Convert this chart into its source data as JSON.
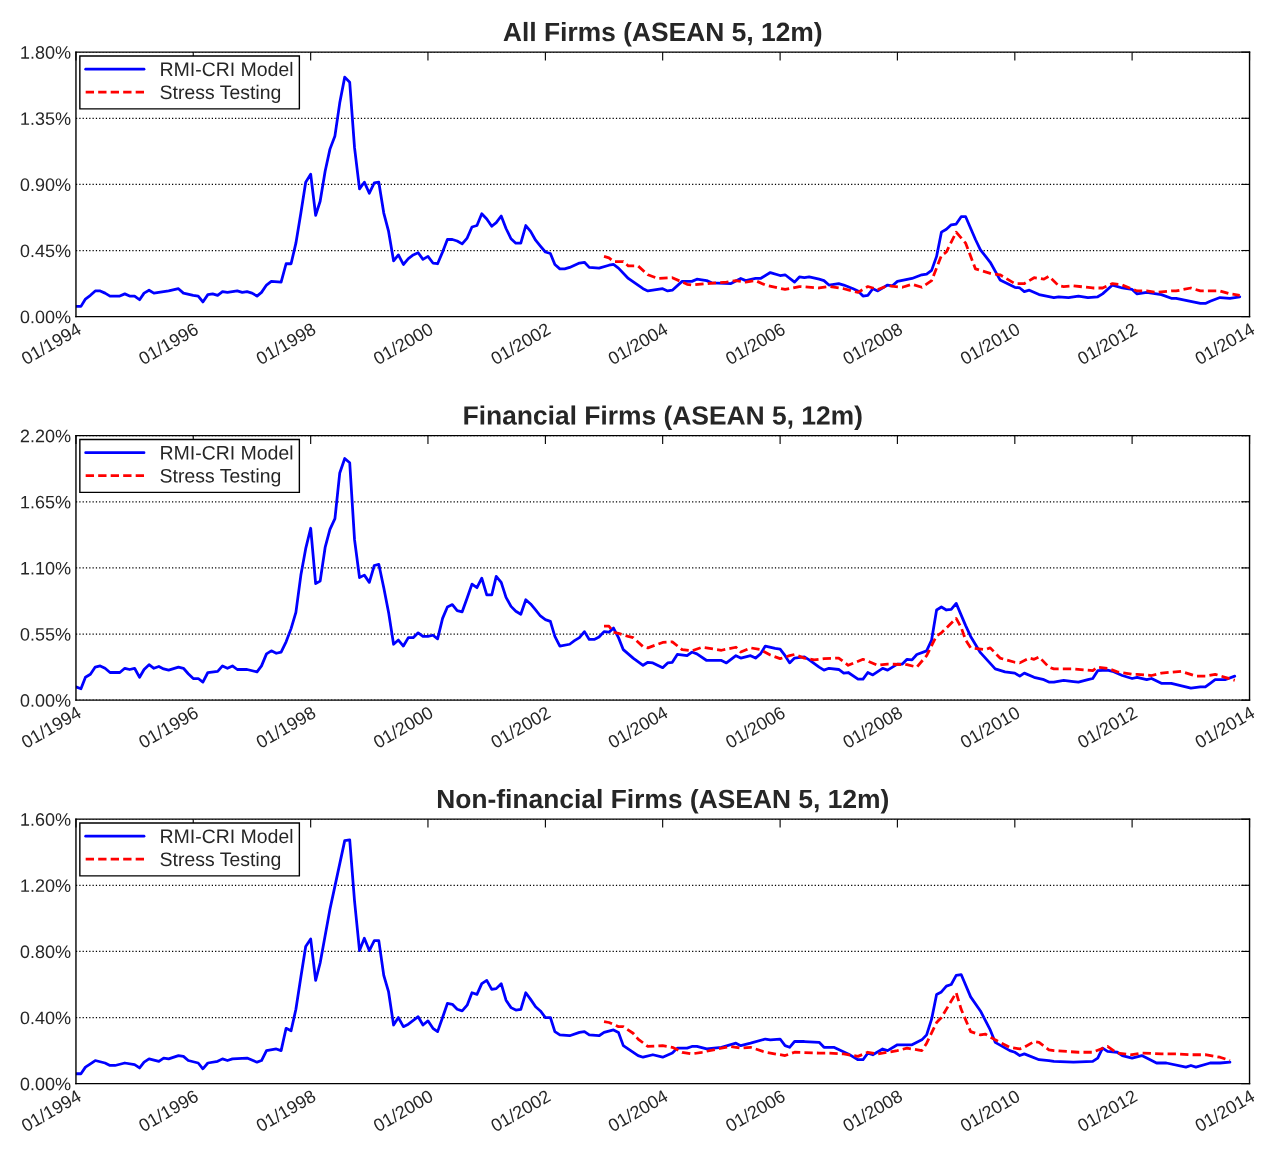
{
  "chart_data": [
    {
      "type": "line",
      "title": "All Firms (ASEAN 5, 12m)",
      "xlim": [
        "1994-01",
        "2014-01"
      ],
      "xticks": [
        {
          "value": "1994-01",
          "label": "01/1994"
        },
        {
          "value": "1996-01",
          "label": "01/1996"
        },
        {
          "value": "1998-01",
          "label": "01/1998"
        },
        {
          "value": "2000-01",
          "label": "01/2000"
        },
        {
          "value": "2002-01",
          "label": "01/2002"
        },
        {
          "value": "2004-01",
          "label": "01/2004"
        },
        {
          "value": "2006-01",
          "label": "01/2006"
        },
        {
          "value": "2008-01",
          "label": "01/2008"
        },
        {
          "value": "2010-01",
          "label": "01/2010"
        },
        {
          "value": "2012-01",
          "label": "01/2012"
        },
        {
          "value": "2014-01",
          "label": "01/2014"
        }
      ],
      "ylim": [
        0,
        1.8
      ],
      "yticks": [
        {
          "value": 0,
          "label": "0.00%"
        },
        {
          "value": 0.45,
          "label": "0.45%"
        },
        {
          "value": 0.9,
          "label": "0.90%"
        },
        {
          "value": 1.35,
          "label": "1.35%"
        },
        {
          "value": 1.8,
          "label": "1.80%"
        }
      ],
      "grid": "y",
      "legend": "top left",
      "series": [
        {
          "name": "RMI-CRI Model",
          "color": "#0000ff",
          "line_style": "solid",
          "x": [
            "1994-01",
            "1994-02",
            "1994-03",
            "1994-04",
            "1994-05",
            "1994-06",
            "1994-07",
            "1994-08",
            "1994-10",
            "1994-11",
            "1994-12",
            "1995-01",
            "1995-02",
            "1995-03",
            "1995-04",
            "1995-05",
            "1995-07",
            "1995-08",
            "1995-10",
            "1995-11",
            "1996-01",
            "1996-02",
            "1996-03",
            "1996-04",
            "1996-05",
            "1996-06",
            "1996-07",
            "1996-08",
            "1996-10",
            "1996-11",
            "1996-12",
            "1997-01",
            "1997-02",
            "1997-03",
            "1997-04",
            "1997-05",
            "1997-07",
            "1997-08",
            "1997-09",
            "1997-10",
            "1997-11",
            "1997-12",
            "1998-01",
            "1998-02",
            "1998-03",
            "1998-04",
            "1998-05",
            "1998-06",
            "1998-07",
            "1998-08",
            "1998-09",
            "1998-10",
            "1998-11",
            "1998-12",
            "1999-01",
            "1999-02",
            "1999-03",
            "1999-04",
            "1999-05",
            "1999-06",
            "1999-07",
            "1999-08",
            "1999-09",
            "1999-10",
            "1999-11",
            "1999-12",
            "2000-01",
            "2000-02",
            "2000-03",
            "2000-04",
            "2000-05",
            "2000-06",
            "2000-07",
            "2000-08",
            "2000-09",
            "2000-10",
            "2000-11",
            "2000-12",
            "2001-01",
            "2001-02",
            "2001-03",
            "2001-04",
            "2001-05",
            "2001-06",
            "2001-07",
            "2001-08",
            "2001-09",
            "2001-10",
            "2001-11",
            "2001-12",
            "2002-01",
            "2002-02",
            "2002-03",
            "2002-04",
            "2002-05",
            "2002-06",
            "2002-08",
            "2002-09",
            "2002-10",
            "2002-12",
            "2003-02",
            "2003-03",
            "2003-04",
            "2003-06",
            "2003-09",
            "2003-10",
            "2004-01",
            "2004-02",
            "2004-03",
            "2004-05",
            "2004-07",
            "2004-08",
            "2004-10",
            "2004-11",
            "2005-03",
            "2005-05",
            "2005-06",
            "2005-08",
            "2005-09",
            "2005-11",
            "2006-01",
            "2006-02",
            "2006-04",
            "2006-05",
            "2006-06",
            "2006-07",
            "2006-09",
            "2006-10",
            "2006-11",
            "2007-01",
            "2007-02",
            "2007-04",
            "2007-05",
            "2007-06",
            "2007-07",
            "2007-08",
            "2007-09",
            "2007-11",
            "2007-12",
            "2008-01",
            "2008-04",
            "2008-06",
            "2008-07",
            "2008-08",
            "2008-09",
            "2008-10",
            "2008-11",
            "2008-12",
            "2009-01",
            "2009-02",
            "2009-03",
            "2009-05",
            "2009-06",
            "2009-08",
            "2009-10",
            "2010-01",
            "2010-02",
            "2010-03",
            "2010-04",
            "2010-06",
            "2010-09",
            "2010-10",
            "2010-12",
            "2011-02",
            "2011-04",
            "2011-06",
            "2011-07",
            "2011-09",
            "2011-11",
            "2012-01",
            "2012-02",
            "2012-04",
            "2012-07",
            "2012-09",
            "2012-10",
            "2013-03",
            "2013-04",
            "2013-05",
            "2013-07",
            "2013-09",
            "2013-11"
          ],
          "values": [
            0.07,
            0.07,
            0.12,
            0.145,
            0.175,
            0.175,
            0.16,
            0.14,
            0.14,
            0.155,
            0.14,
            0.14,
            0.115,
            0.16,
            0.18,
            0.16,
            0.17,
            0.175,
            0.19,
            0.16,
            0.145,
            0.14,
            0.1,
            0.15,
            0.155,
            0.145,
            0.17,
            0.165,
            0.175,
            0.165,
            0.17,
            0.16,
            0.14,
            0.165,
            0.215,
            0.24,
            0.235,
            0.36,
            0.36,
            0.5,
            0.705,
            0.915,
            0.97,
            0.69,
            0.785,
            0.99,
            1.14,
            1.23,
            1.455,
            1.63,
            1.595,
            1.15,
            0.87,
            0.915,
            0.84,
            0.91,
            0.915,
            0.705,
            0.58,
            0.38,
            0.42,
            0.355,
            0.395,
            0.42,
            0.435,
            0.39,
            0.41,
            0.365,
            0.36,
            0.44,
            0.525,
            0.525,
            0.515,
            0.495,
            0.535,
            0.61,
            0.62,
            0.7,
            0.665,
            0.615,
            0.64,
            0.685,
            0.6,
            0.53,
            0.5,
            0.5,
            0.62,
            0.58,
            0.52,
            0.48,
            0.44,
            0.43,
            0.355,
            0.325,
            0.325,
            0.335,
            0.365,
            0.37,
            0.335,
            0.33,
            0.35,
            0.355,
            0.33,
            0.26,
            0.19,
            0.175,
            0.19,
            0.175,
            0.18,
            0.24,
            0.24,
            0.255,
            0.245,
            0.23,
            0.225,
            0.26,
            0.245,
            0.26,
            0.26,
            0.3,
            0.28,
            0.285,
            0.235,
            0.27,
            0.265,
            0.27,
            0.255,
            0.245,
            0.215,
            0.225,
            0.215,
            0.19,
            0.175,
            0.14,
            0.145,
            0.19,
            0.175,
            0.215,
            0.21,
            0.24,
            0.26,
            0.285,
            0.29,
            0.315,
            0.41,
            0.575,
            0.595,
            0.625,
            0.63,
            0.68,
            0.68,
            0.525,
            0.455,
            0.37,
            0.25,
            0.2,
            0.195,
            0.17,
            0.18,
            0.15,
            0.13,
            0.135,
            0.13,
            0.14,
            0.13,
            0.135,
            0.155,
            0.215,
            0.195,
            0.185,
            0.155,
            0.165,
            0.15,
            0.125,
            0.125,
            0.09,
            0.09,
            0.105,
            0.13,
            0.125,
            0.135
          ]
        },
        {
          "name": "Stress Testing",
          "color": "#ff0000",
          "line_style": "dashed",
          "x": [
            "2003-01",
            "2003-02",
            "2003-03",
            "2003-05",
            "2003-06",
            "2003-08",
            "2003-10",
            "2003-12",
            "2004-03",
            "2004-06",
            "2004-07",
            "2004-10",
            "2005-02",
            "2005-04",
            "2005-06",
            "2005-08",
            "2005-10",
            "2006-02",
            "2006-05",
            "2006-09",
            "2006-11",
            "2007-02",
            "2007-05",
            "2007-07",
            "2007-09",
            "2007-11",
            "2008-02",
            "2008-04",
            "2008-06",
            "2008-08",
            "2008-10",
            "2008-11",
            "2009-01",
            "2009-03",
            "2009-05",
            "2009-08",
            "2009-10",
            "2010-01",
            "2010-03",
            "2010-05",
            "2010-07",
            "2010-08",
            "2010-10",
            "2010-11",
            "2011-01",
            "2011-05",
            "2011-07",
            "2011-09",
            "2011-11",
            "2012-02",
            "2012-04",
            "2012-06",
            "2012-09",
            "2012-10",
            "2013-01",
            "2013-03",
            "2013-07",
            "2013-09",
            "2013-11"
          ],
          "values": [
            0.41,
            0.4,
            0.375,
            0.375,
            0.345,
            0.345,
            0.285,
            0.26,
            0.265,
            0.22,
            0.215,
            0.225,
            0.235,
            0.245,
            0.235,
            0.245,
            0.215,
            0.185,
            0.205,
            0.195,
            0.205,
            0.19,
            0.165,
            0.205,
            0.185,
            0.21,
            0.2,
            0.22,
            0.2,
            0.245,
            0.415,
            0.44,
            0.575,
            0.5,
            0.325,
            0.295,
            0.285,
            0.225,
            0.225,
            0.265,
            0.255,
            0.275,
            0.21,
            0.205,
            0.21,
            0.195,
            0.195,
            0.225,
            0.215,
            0.175,
            0.175,
            0.165,
            0.175,
            0.175,
            0.195,
            0.175,
            0.175,
            0.155,
            0.145
          ]
        }
      ]
    },
    {
      "type": "line",
      "title": "Financial Firms (ASEAN 5, 12m)",
      "xlim": [
        "1994-01",
        "2014-01"
      ],
      "xticks": [
        {
          "value": "1994-01",
          "label": "01/1994"
        },
        {
          "value": "1996-01",
          "label": "01/1996"
        },
        {
          "value": "1998-01",
          "label": "01/1998"
        },
        {
          "value": "2000-01",
          "label": "01/2000"
        },
        {
          "value": "2002-01",
          "label": "01/2002"
        },
        {
          "value": "2004-01",
          "label": "01/2004"
        },
        {
          "value": "2006-01",
          "label": "01/2006"
        },
        {
          "value": "2008-01",
          "label": "01/2008"
        },
        {
          "value": "2010-01",
          "label": "01/2010"
        },
        {
          "value": "2012-01",
          "label": "01/2012"
        },
        {
          "value": "2014-01",
          "label": "01/2014"
        }
      ],
      "ylim": [
        0,
        2.2
      ],
      "yticks": [
        {
          "value": 0,
          "label": "0.00%"
        },
        {
          "value": 0.55,
          "label": "0.55%"
        },
        {
          "value": 1.1,
          "label": "1.10%"
        },
        {
          "value": 1.65,
          "label": "1.65%"
        },
        {
          "value": 2.2,
          "label": "2.20%"
        }
      ],
      "grid": "y",
      "legend": "top left",
      "series": [
        {
          "name": "RMI-CRI Model",
          "color": "#0000ff",
          "line_style": "solid",
          "x": [
            "1994-01",
            "1994-02",
            "1994-03",
            "1994-04",
            "1994-05",
            "1994-06",
            "1994-07",
            "1994-08",
            "1994-10",
            "1994-11",
            "1994-12",
            "1995-01",
            "1995-02",
            "1995-03",
            "1995-04",
            "1995-05",
            "1995-06",
            "1995-07",
            "1995-08",
            "1995-10",
            "1995-11",
            "1995-12",
            "1996-01",
            "1996-02",
            "1996-03",
            "1996-04",
            "1996-06",
            "1996-07",
            "1996-08",
            "1996-09",
            "1996-10",
            "1996-12",
            "1997-02",
            "1997-03",
            "1997-04",
            "1997-05",
            "1997-06",
            "1997-07",
            "1997-08",
            "1997-09",
            "1997-10",
            "1997-11",
            "1997-12",
            "1998-01",
            "1998-02",
            "1998-03",
            "1998-04",
            "1998-05",
            "1998-06",
            "1998-07",
            "1998-08",
            "1998-09",
            "1998-10",
            "1998-11",
            "1998-12",
            "1999-01",
            "1999-02",
            "1999-03",
            "1999-04",
            "1999-05",
            "1999-06",
            "1999-07",
            "1999-08",
            "1999-09",
            "1999-10",
            "1999-11",
            "1999-12",
            "2000-01",
            "2000-02",
            "2000-03",
            "2000-04",
            "2000-05",
            "2000-06",
            "2000-07",
            "2000-08",
            "2000-09",
            "2000-10",
            "2000-11",
            "2000-12",
            "2001-01",
            "2001-02",
            "2001-03",
            "2001-04",
            "2001-05",
            "2001-06",
            "2001-07",
            "2001-08",
            "2001-09",
            "2001-10",
            "2001-11",
            "2001-12",
            "2002-01",
            "2002-02",
            "2002-03",
            "2002-04",
            "2002-06",
            "2002-07",
            "2002-08",
            "2002-09",
            "2002-10",
            "2002-11",
            "2002-12",
            "2003-01",
            "2003-02",
            "2003-03",
            "2003-04",
            "2003-05",
            "2003-07",
            "2003-09",
            "2003-10",
            "2003-11",
            "2004-01",
            "2004-02",
            "2004-03",
            "2004-04",
            "2004-06",
            "2004-07",
            "2004-08",
            "2004-10",
            "2005-01",
            "2005-02",
            "2005-04",
            "2005-05",
            "2005-06",
            "2005-07",
            "2005-08",
            "2005-09",
            "2005-10",
            "2005-12",
            "2006-01",
            "2006-02",
            "2006-03",
            "2006-04",
            "2006-06",
            "2006-07",
            "2006-09",
            "2006-10",
            "2006-11",
            "2007-01",
            "2007-02",
            "2007-03",
            "2007-05",
            "2007-06",
            "2007-07",
            "2007-08",
            "2007-10",
            "2007-11",
            "2008-01",
            "2008-02",
            "2008-03",
            "2008-04",
            "2008-05",
            "2008-07",
            "2008-08",
            "2008-09",
            "2008-10",
            "2008-11",
            "2008-12",
            "2009-01",
            "2009-03",
            "2009-04",
            "2009-06",
            "2009-09",
            "2009-11",
            "2010-01",
            "2010-02",
            "2010-03",
            "2010-05",
            "2010-07",
            "2010-08",
            "2010-09",
            "2010-11",
            "2011-01",
            "2011-02",
            "2011-04",
            "2011-05",
            "2011-06",
            "2011-08",
            "2011-09",
            "2011-11",
            "2012-01",
            "2012-02",
            "2012-04",
            "2012-05",
            "2012-07",
            "2012-09",
            "2013-01",
            "2013-03",
            "2013-04",
            "2013-05",
            "2013-06",
            "2013-08",
            "2013-10"
          ],
          "values": [
            0.11,
            0.095,
            0.19,
            0.215,
            0.275,
            0.285,
            0.265,
            0.23,
            0.23,
            0.265,
            0.255,
            0.265,
            0.19,
            0.255,
            0.295,
            0.265,
            0.28,
            0.26,
            0.25,
            0.275,
            0.265,
            0.22,
            0.18,
            0.18,
            0.15,
            0.23,
            0.24,
            0.285,
            0.265,
            0.285,
            0.255,
            0.255,
            0.235,
            0.285,
            0.385,
            0.41,
            0.39,
            0.4,
            0.485,
            0.595,
            0.73,
            1.04,
            1.26,
            1.43,
            0.97,
            0.99,
            1.27,
            1.42,
            1.51,
            1.89,
            2.01,
            1.975,
            1.335,
            1.02,
            1.04,
            0.98,
            1.12,
            1.13,
            0.935,
            0.73,
            0.465,
            0.5,
            0.45,
            0.52,
            0.52,
            0.56,
            0.53,
            0.53,
            0.54,
            0.51,
            0.68,
            0.775,
            0.795,
            0.745,
            0.735,
            0.85,
            0.965,
            0.935,
            1.015,
            0.875,
            0.875,
            1.03,
            0.98,
            0.855,
            0.78,
            0.74,
            0.715,
            0.835,
            0.8,
            0.75,
            0.7,
            0.67,
            0.655,
            0.53,
            0.45,
            0.465,
            0.495,
            0.52,
            0.57,
            0.505,
            0.505,
            0.525,
            0.57,
            0.565,
            0.6,
            0.52,
            0.42,
            0.35,
            0.29,
            0.315,
            0.31,
            0.27,
            0.31,
            0.315,
            0.38,
            0.37,
            0.4,
            0.385,
            0.33,
            0.33,
            0.31,
            0.37,
            0.35,
            0.36,
            0.37,
            0.35,
            0.385,
            0.45,
            0.43,
            0.425,
            0.37,
            0.31,
            0.35,
            0.36,
            0.335,
            0.275,
            0.25,
            0.265,
            0.255,
            0.225,
            0.23,
            0.175,
            0.175,
            0.23,
            0.21,
            0.265,
            0.25,
            0.3,
            0.3,
            0.34,
            0.335,
            0.38,
            0.41,
            0.5,
            0.75,
            0.775,
            0.75,
            0.755,
            0.805,
            0.62,
            0.53,
            0.395,
            0.26,
            0.235,
            0.225,
            0.2,
            0.225,
            0.19,
            0.17,
            0.15,
            0.15,
            0.165,
            0.155,
            0.15,
            0.17,
            0.18,
            0.245,
            0.25,
            0.24,
            0.205,
            0.18,
            0.19,
            0.17,
            0.18,
            0.14,
            0.14,
            0.1,
            0.11,
            0.11,
            0.14,
            0.17,
            0.17,
            0.2
          ]
        },
        {
          "name": "Stress Testing",
          "color": "#ff0000",
          "line_style": "dashed",
          "x": [
            "2003-01",
            "2003-02",
            "2003-03",
            "2003-04",
            "2003-06",
            "2003-07",
            "2003-09",
            "2003-10",
            "2004-01",
            "2004-03",
            "2004-05",
            "2004-07",
            "2004-09",
            "2005-01",
            "2005-04",
            "2005-05",
            "2005-07",
            "2005-09",
            "2005-11",
            "2006-01",
            "2006-03",
            "2006-04",
            "2006-06",
            "2006-08",
            "2006-10",
            "2007-01",
            "2007-03",
            "2007-06",
            "2007-07",
            "2007-09",
            "2007-11",
            "2008-03",
            "2008-05",
            "2008-07",
            "2008-09",
            "2008-10",
            "2009-01",
            "2009-02",
            "2009-03",
            "2009-04",
            "2009-07",
            "2009-08",
            "2009-10",
            "2010-01",
            "2010-02",
            "2010-04",
            "2010-05",
            "2010-06",
            "2010-08",
            "2010-09",
            "2011-01",
            "2011-05",
            "2011-06",
            "2011-08",
            "2011-10",
            "2012-01",
            "2012-02",
            "2012-05",
            "2012-07",
            "2012-11",
            "2013-02",
            "2013-04",
            "2013-06",
            "2013-08",
            "2013-10"
          ],
          "values": [
            0.615,
            0.615,
            0.565,
            0.555,
            0.53,
            0.52,
            0.445,
            0.435,
            0.48,
            0.485,
            0.42,
            0.41,
            0.44,
            0.415,
            0.44,
            0.4,
            0.435,
            0.42,
            0.375,
            0.345,
            0.37,
            0.38,
            0.35,
            0.335,
            0.345,
            0.35,
            0.29,
            0.34,
            0.325,
            0.29,
            0.3,
            0.295,
            0.275,
            0.37,
            0.535,
            0.56,
            0.68,
            0.605,
            0.5,
            0.435,
            0.42,
            0.435,
            0.35,
            0.315,
            0.31,
            0.35,
            0.34,
            0.36,
            0.275,
            0.26,
            0.26,
            0.245,
            0.275,
            0.265,
            0.235,
            0.215,
            0.215,
            0.205,
            0.225,
            0.24,
            0.2,
            0.2,
            0.215,
            0.19,
            0.165
          ]
        }
      ]
    },
    {
      "type": "line",
      "title": "Non-financial Firms (ASEAN 5, 12m)",
      "xlim": [
        "1994-01",
        "2014-01"
      ],
      "xticks": [
        {
          "value": "1994-01",
          "label": "01/1994"
        },
        {
          "value": "1996-01",
          "label": "01/1996"
        },
        {
          "value": "1998-01",
          "label": "01/1998"
        },
        {
          "value": "2000-01",
          "label": "01/2000"
        },
        {
          "value": "2002-01",
          "label": "01/2002"
        },
        {
          "value": "2004-01",
          "label": "01/2004"
        },
        {
          "value": "2006-01",
          "label": "01/2006"
        },
        {
          "value": "2008-01",
          "label": "01/2008"
        },
        {
          "value": "2010-01",
          "label": "01/2010"
        },
        {
          "value": "2012-01",
          "label": "01/2012"
        },
        {
          "value": "2014-01",
          "label": "01/2014"
        }
      ],
      "ylim": [
        0,
        1.6
      ],
      "yticks": [
        {
          "value": 0,
          "label": "0.00%"
        },
        {
          "value": 0.4,
          "label": "0.40%"
        },
        {
          "value": 0.8,
          "label": "0.80%"
        },
        {
          "value": 1.2,
          "label": "1.20%"
        },
        {
          "value": 1.6,
          "label": "1.60%"
        }
      ],
      "grid": "y",
      "legend": "top left",
      "series": [
        {
          "name": "RMI-CRI Model",
          "color": "#0000ff",
          "line_style": "solid",
          "x": [
            "1994-01",
            "1994-02",
            "1994-03",
            "1994-04",
            "1994-05",
            "1994-07",
            "1994-08",
            "1994-09",
            "1994-11",
            "1995-01",
            "1995-02",
            "1995-03",
            "1995-04",
            "1995-06",
            "1995-07",
            "1995-08",
            "1995-10",
            "1995-11",
            "1995-12",
            "1996-02",
            "1996-03",
            "1996-04",
            "1996-06",
            "1996-07",
            "1996-08",
            "1996-09",
            "1996-12",
            "1997-02",
            "1997-03",
            "1997-04",
            "1997-06",
            "1997-07",
            "1997-08",
            "1997-09",
            "1997-10",
            "1997-11",
            "1997-12",
            "1998-01",
            "1998-02",
            "1998-03",
            "1998-05",
            "1998-06",
            "1998-08",
            "1998-09",
            "1998-10",
            "1998-11",
            "1998-12",
            "1999-01",
            "1999-02",
            "1999-03",
            "1999-04",
            "1999-05",
            "1999-06",
            "1999-07",
            "1999-08",
            "1999-09",
            "1999-11",
            "1999-12",
            "2000-01",
            "2000-02",
            "2000-03",
            "2000-04",
            "2000-05",
            "2000-06",
            "2000-07",
            "2000-08",
            "2000-09",
            "2000-10",
            "2000-11",
            "2000-12",
            "2001-01",
            "2001-02",
            "2001-03",
            "2001-04",
            "2001-05",
            "2001-06",
            "2001-07",
            "2001-08",
            "2001-09",
            "2001-10",
            "2001-11",
            "2001-12",
            "2002-01",
            "2002-02",
            "2002-03",
            "2002-04",
            "2002-06",
            "2002-08",
            "2002-09",
            "2002-10",
            "2002-12",
            "2003-01",
            "2003-03",
            "2003-04",
            "2003-05",
            "2003-08",
            "2003-09",
            "2003-11",
            "2004-01",
            "2004-03",
            "2004-04",
            "2004-06",
            "2004-07",
            "2004-08",
            "2004-10",
            "2005-01",
            "2005-04",
            "2005-05",
            "2005-07",
            "2005-10",
            "2005-11",
            "2006-01",
            "2006-02",
            "2006-03",
            "2006-04",
            "2006-06",
            "2006-09",
            "2006-10",
            "2006-12",
            "2007-03",
            "2007-05",
            "2007-06",
            "2007-07",
            "2007-08",
            "2007-10",
            "2007-11",
            "2008-01",
            "2008-04",
            "2008-06",
            "2008-07",
            "2008-08",
            "2008-09",
            "2008-10",
            "2008-11",
            "2008-12",
            "2009-01",
            "2009-02",
            "2009-04",
            "2009-06",
            "2009-08",
            "2009-09",
            "2009-12",
            "2010-01",
            "2010-02",
            "2010-03",
            "2010-06",
            "2010-08",
            "2010-09",
            "2011-01",
            "2011-05",
            "2011-06",
            "2011-07",
            "2011-08",
            "2011-10",
            "2011-11",
            "2012-01",
            "2012-03",
            "2012-04",
            "2012-06",
            "2012-08",
            "2012-12",
            "2013-01",
            "2013-02",
            "2013-05",
            "2013-07",
            "2013-09"
          ],
          "values": [
            0.06,
            0.06,
            0.1,
            0.12,
            0.14,
            0.125,
            0.11,
            0.11,
            0.125,
            0.115,
            0.095,
            0.13,
            0.15,
            0.135,
            0.155,
            0.15,
            0.17,
            0.165,
            0.14,
            0.125,
            0.09,
            0.125,
            0.135,
            0.15,
            0.14,
            0.15,
            0.155,
            0.13,
            0.14,
            0.2,
            0.21,
            0.2,
            0.335,
            0.32,
            0.45,
            0.645,
            0.83,
            0.875,
            0.625,
            0.73,
            1.055,
            1.195,
            1.47,
            1.475,
            1.105,
            0.805,
            0.88,
            0.805,
            0.865,
            0.865,
            0.655,
            0.555,
            0.355,
            0.4,
            0.345,
            0.36,
            0.405,
            0.355,
            0.38,
            0.335,
            0.315,
            0.4,
            0.485,
            0.48,
            0.45,
            0.44,
            0.475,
            0.55,
            0.54,
            0.605,
            0.625,
            0.57,
            0.575,
            0.605,
            0.505,
            0.46,
            0.445,
            0.45,
            0.55,
            0.51,
            0.465,
            0.44,
            0.4,
            0.4,
            0.315,
            0.295,
            0.29,
            0.31,
            0.315,
            0.295,
            0.29,
            0.31,
            0.325,
            0.31,
            0.23,
            0.17,
            0.16,
            0.175,
            0.16,
            0.185,
            0.215,
            0.215,
            0.225,
            0.225,
            0.21,
            0.22,
            0.245,
            0.23,
            0.245,
            0.27,
            0.265,
            0.27,
            0.23,
            0.22,
            0.255,
            0.255,
            0.25,
            0.22,
            0.22,
            0.18,
            0.145,
            0.145,
            0.185,
            0.175,
            0.21,
            0.2,
            0.235,
            0.235,
            0.265,
            0.295,
            0.39,
            0.54,
            0.555,
            0.59,
            0.6,
            0.655,
            0.66,
            0.525,
            0.44,
            0.325,
            0.25,
            0.2,
            0.19,
            0.17,
            0.18,
            0.145,
            0.14,
            0.135,
            0.13,
            0.135,
            0.155,
            0.215,
            0.195,
            0.19,
            0.17,
            0.155,
            0.17,
            0.155,
            0.125,
            0.125,
            0.1,
            0.11,
            0.1,
            0.125,
            0.125,
            0.13
          ]
        },
        {
          "name": "Stress Testing",
          "color": "#ff0000",
          "line_style": "dashed",
          "x": [
            "2003-01",
            "2003-02",
            "2003-04",
            "2003-05",
            "2003-07",
            "2003-08",
            "2003-10",
            "2004-01",
            "2004-03",
            "2004-05",
            "2004-07",
            "2004-09",
            "2005-01",
            "2005-03",
            "2005-05",
            "2005-07",
            "2005-10",
            "2006-02",
            "2006-04",
            "2006-09",
            "2006-11",
            "2007-02",
            "2007-05",
            "2007-07",
            "2007-09",
            "2008-01",
            "2008-03",
            "2008-06",
            "2008-07",
            "2008-09",
            "2008-10",
            "2009-01",
            "2009-02",
            "2009-04",
            "2009-06",
            "2009-07",
            "2009-09",
            "2009-12",
            "2010-02",
            "2010-03",
            "2010-05",
            "2010-06",
            "2010-08",
            "2010-09",
            "2011-02",
            "2011-05",
            "2011-08",
            "2011-10",
            "2012-01",
            "2012-03",
            "2012-07",
            "2012-10",
            "2013-01",
            "2013-04",
            "2013-07",
            "2013-09"
          ],
          "values": [
            0.375,
            0.37,
            0.345,
            0.345,
            0.305,
            0.27,
            0.225,
            0.23,
            0.22,
            0.19,
            0.18,
            0.19,
            0.215,
            0.225,
            0.215,
            0.22,
            0.19,
            0.17,
            0.19,
            0.185,
            0.185,
            0.18,
            0.165,
            0.19,
            0.18,
            0.2,
            0.215,
            0.2,
            0.245,
            0.37,
            0.4,
            0.55,
            0.45,
            0.315,
            0.295,
            0.3,
            0.265,
            0.22,
            0.21,
            0.22,
            0.255,
            0.25,
            0.205,
            0.2,
            0.19,
            0.19,
            0.225,
            0.185,
            0.175,
            0.185,
            0.18,
            0.18,
            0.175,
            0.175,
            0.16,
            0.14
          ]
        }
      ]
    }
  ]
}
